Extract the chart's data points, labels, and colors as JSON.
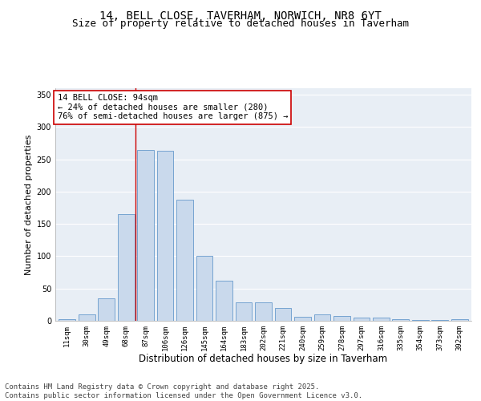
{
  "title_line1": "14, BELL CLOSE, TAVERHAM, NORWICH, NR8 6YT",
  "title_line2": "Size of property relative to detached houses in Taverham",
  "xlabel": "Distribution of detached houses by size in Taverham",
  "ylabel": "Number of detached properties",
  "bar_labels": [
    "11sqm",
    "30sqm",
    "49sqm",
    "68sqm",
    "87sqm",
    "106sqm",
    "126sqm",
    "145sqm",
    "164sqm",
    "183sqm",
    "202sqm",
    "221sqm",
    "240sqm",
    "259sqm",
    "278sqm",
    "297sqm",
    "316sqm",
    "335sqm",
    "354sqm",
    "373sqm",
    "392sqm"
  ],
  "bar_values": [
    2,
    10,
    35,
    165,
    265,
    263,
    187,
    100,
    62,
    28,
    28,
    20,
    6,
    10,
    7,
    5,
    5,
    2,
    1,
    1,
    2
  ],
  "bar_color_fill": "#c9d9ec",
  "bar_color_edge": "#6699cc",
  "vline_x_index": 4,
  "vline_color": "#cc0000",
  "annotation_text": "14 BELL CLOSE: 94sqm\n← 24% of detached houses are smaller (280)\n76% of semi-detached houses are larger (875) →",
  "annotation_box_color": "#cc0000",
  "ylim": [
    0,
    360
  ],
  "yticks": [
    0,
    50,
    100,
    150,
    200,
    250,
    300,
    350
  ],
  "background_color": "#e8eef5",
  "grid_color": "#ffffff",
  "footer_text": "Contains HM Land Registry data © Crown copyright and database right 2025.\nContains public sector information licensed under the Open Government Licence v3.0.",
  "title_fontsize": 10,
  "subtitle_fontsize": 9,
  "xlabel_fontsize": 8.5,
  "ylabel_fontsize": 8,
  "tick_fontsize": 6.5,
  "annotation_fontsize": 7.5,
  "footer_fontsize": 6.5
}
